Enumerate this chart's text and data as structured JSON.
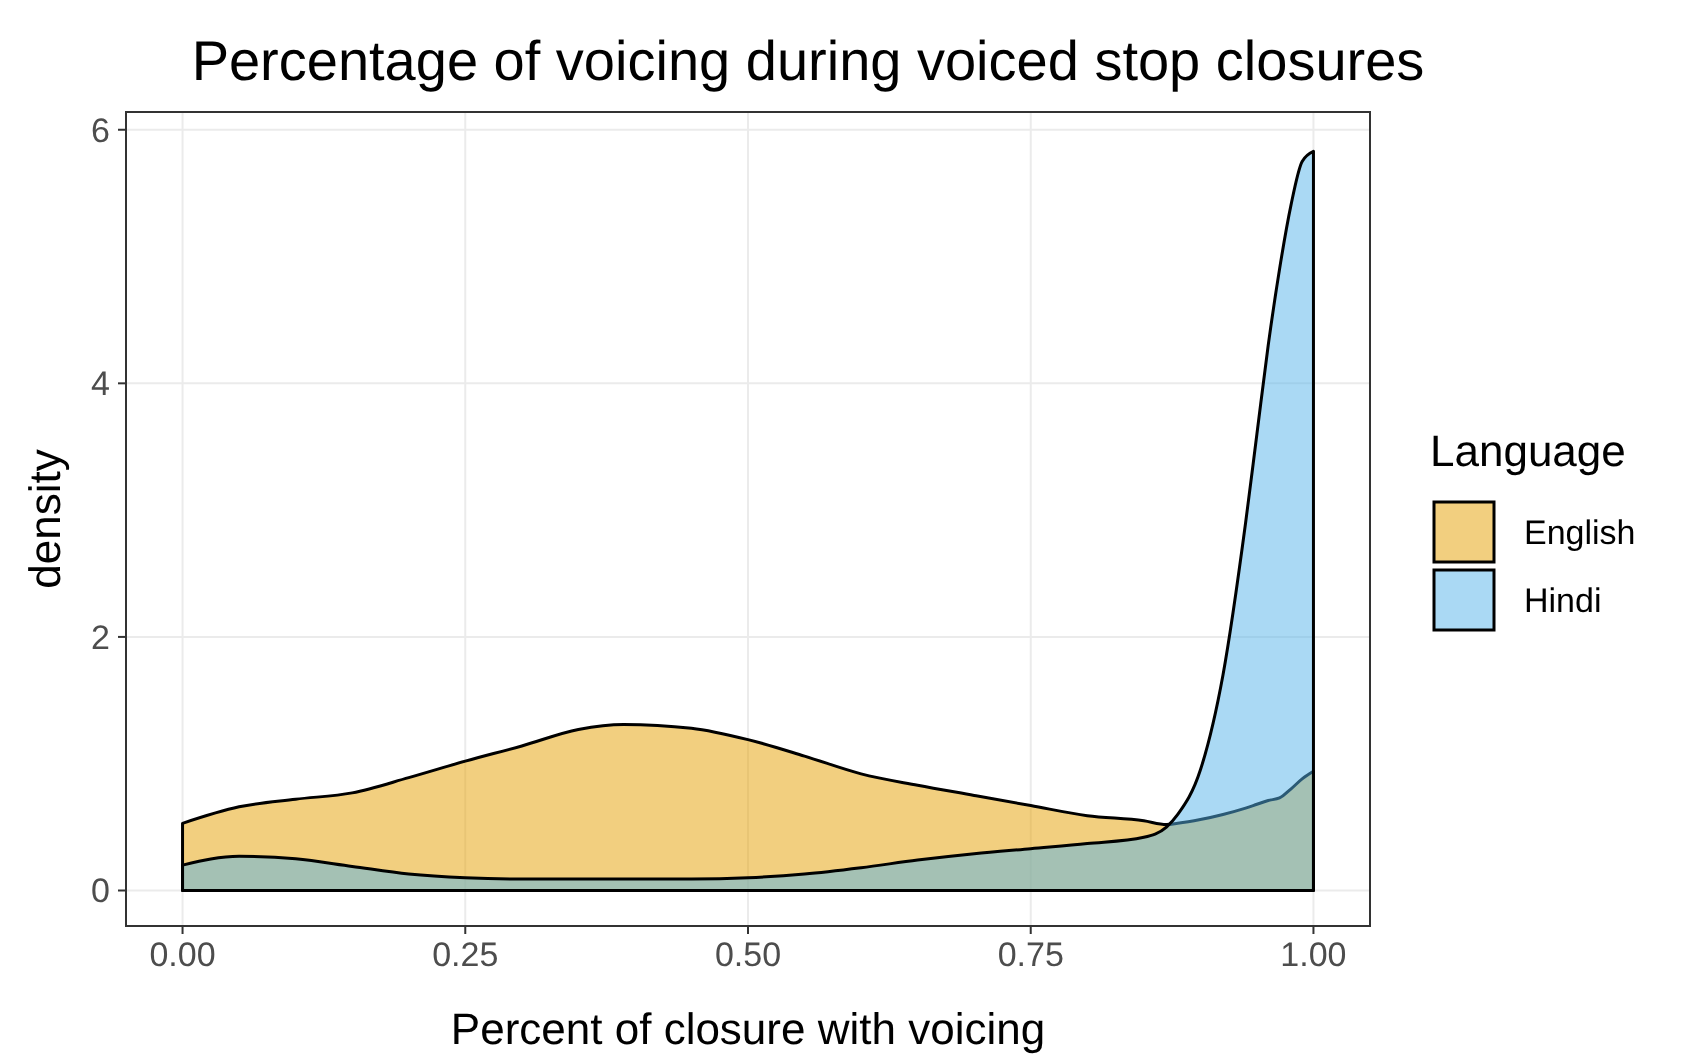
{
  "chart_data": {
    "type": "area",
    "title": "Percentage of voicing during voiced stop closures",
    "xlabel": "Percent of closure with voicing",
    "ylabel": "density",
    "legend_title": "Language",
    "x": [
      0,
      0.05,
      0.1,
      0.15,
      0.2,
      0.25,
      0.3,
      0.35,
      0.39,
      0.45,
      0.5,
      0.55,
      0.6,
      0.65,
      0.7,
      0.75,
      0.8,
      0.85,
      0.87,
      0.88,
      0.9,
      0.92,
      0.94,
      0.95,
      0.96,
      0.97,
      0.98,
      0.99,
      1
    ],
    "series": [
      {
        "name": "English",
        "color": "#e69f00",
        "values": [
          0.53,
          0.66,
          0.72,
          0.77,
          0.89,
          1.02,
          1.14,
          1.27,
          1.31,
          1.28,
          1.19,
          1.06,
          0.92,
          0.83,
          0.75,
          0.67,
          0.59,
          0.55,
          0.52,
          0.53,
          0.56,
          0.6,
          0.65,
          0.68,
          0.71,
          0.73,
          0.8,
          0.88,
          0.94
        ]
      },
      {
        "name": "Hindi",
        "color": "#56b4e9",
        "values": [
          0.2,
          0.27,
          0.25,
          0.19,
          0.13,
          0.1,
          0.09,
          0.09,
          0.09,
          0.09,
          0.1,
          0.13,
          0.18,
          0.24,
          0.29,
          0.33,
          0.37,
          0.42,
          0.5,
          0.6,
          0.95,
          1.7,
          2.9,
          3.6,
          4.3,
          4.9,
          5.4,
          5.75,
          5.83
        ]
      }
    ],
    "xlim": [
      -0.05,
      1.05
    ],
    "ylim": [
      -0.28,
      6.14
    ],
    "xticks": [
      {
        "value": 0,
        "label": "0.00"
      },
      {
        "value": 0.25,
        "label": "0.25"
      },
      {
        "value": 0.5,
        "label": "0.50"
      },
      {
        "value": 0.75,
        "label": "0.75"
      },
      {
        "value": 1,
        "label": "1.00"
      }
    ],
    "yticks": [
      0,
      2,
      4,
      6
    ],
    "grid": true,
    "legend": "right"
  }
}
